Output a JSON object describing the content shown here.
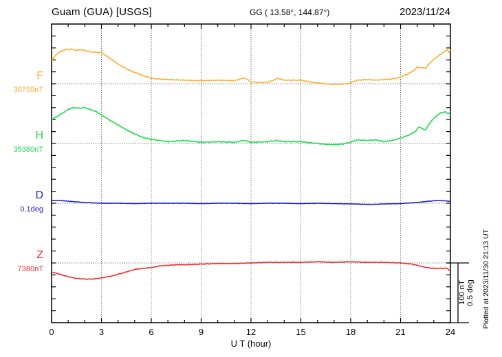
{
  "header": {
    "station": "Guam (GUA)  [USGS]",
    "coords": "GG ( 13.58°, 144.87°)",
    "date": "2023/11/24"
  },
  "x_axis": {
    "label": "U T (hour)",
    "tick_labels": [
      "0",
      "3",
      "6",
      "9",
      "12",
      "15",
      "18",
      "21",
      "24"
    ]
  },
  "scale_bar": {
    "line1": "100 nT",
    "line2": "0.5 deg"
  },
  "footer_note": "Plotted at 2023/11/30 21:13 UT",
  "channels": [
    {
      "id": "F",
      "label": "F",
      "base_label": "36750nT",
      "color": "#FFAE2A"
    },
    {
      "id": "H",
      "label": "H",
      "base_label": "35380nT",
      "color": "#1EDC50"
    },
    {
      "id": "D",
      "label": "D",
      "base_label": "0.1deg",
      "color": "#2424CE"
    },
    {
      "id": "Z",
      "label": "Z",
      "base_label": "7380nT",
      "color": "#F12B2B"
    }
  ],
  "chart_data": {
    "type": "line",
    "title": "Guam (GUA) [USGS] magnetogram",
    "xlabel": "U T (hour)",
    "x_range": [
      0,
      24
    ],
    "x_tick_step": 3,
    "grid": "dotted vertical every 3h, dotted horizontal baseline per channel",
    "legend_position": "left margin channel labels",
    "division_scale": {
      "nT_per_division": 100,
      "deg_per_division": 0.5
    },
    "series": [
      {
        "name": "F",
        "unit": "nT",
        "baseline": 36750,
        "color": "#FFAE2A",
        "points": [
          [
            0,
            36790
          ],
          [
            0.4,
            36802
          ],
          [
            0.8,
            36807
          ],
          [
            1.2,
            36808
          ],
          [
            1.5,
            36806
          ],
          [
            1.8,
            36807
          ],
          [
            2.1,
            36805
          ],
          [
            2.5,
            36803
          ],
          [
            3,
            36802
          ],
          [
            3.5,
            36793
          ],
          [
            4,
            36783
          ],
          [
            4.5,
            36775
          ],
          [
            5,
            36769
          ],
          [
            5.5,
            36764
          ],
          [
            6,
            36759
          ],
          [
            6.5,
            36758
          ],
          [
            7,
            36757
          ],
          [
            8,
            36756
          ],
          [
            9,
            36755
          ],
          [
            10,
            36756
          ],
          [
            11,
            36755
          ],
          [
            11.6,
            36760
          ],
          [
            12,
            36753
          ],
          [
            12.6,
            36752
          ],
          [
            13.1,
            36753
          ],
          [
            13.6,
            36759
          ],
          [
            14,
            36756
          ],
          [
            15,
            36756
          ],
          [
            15.5,
            36753
          ],
          [
            16.2,
            36751
          ],
          [
            16.8,
            36749
          ],
          [
            17.3,
            36749
          ],
          [
            17.8,
            36750
          ],
          [
            18.4,
            36756
          ],
          [
            19,
            36757
          ],
          [
            19.5,
            36756
          ],
          [
            20,
            36757
          ],
          [
            20.5,
            36758
          ],
          [
            21,
            36761
          ],
          [
            21.4,
            36766
          ],
          [
            21.8,
            36772
          ],
          [
            22,
            36778
          ],
          [
            22.2,
            36777
          ],
          [
            22.5,
            36776
          ],
          [
            22.8,
            36786
          ],
          [
            23.2,
            36795
          ],
          [
            23.5,
            36801
          ],
          [
            23.8,
            36807
          ],
          [
            23.9,
            36803
          ],
          [
            24,
            36806
          ]
        ]
      },
      {
        "name": "H",
        "unit": "nT",
        "baseline": 35380,
        "color": "#1EDC50",
        "points": [
          [
            0,
            35420
          ],
          [
            0.5,
            35428
          ],
          [
            1,
            35437
          ],
          [
            1.3,
            35440
          ],
          [
            1.7,
            35439
          ],
          [
            2,
            35440
          ],
          [
            2.3,
            35437
          ],
          [
            2.7,
            35433
          ],
          [
            3,
            35428
          ],
          [
            3.5,
            35419
          ],
          [
            4,
            35411
          ],
          [
            4.5,
            35403
          ],
          [
            5,
            35396
          ],
          [
            5.5,
            35390
          ],
          [
            6,
            35387
          ],
          [
            6.5,
            35385
          ],
          [
            7,
            35383
          ],
          [
            8,
            35385
          ],
          [
            9,
            35382
          ],
          [
            10,
            35383
          ],
          [
            11,
            35382
          ],
          [
            11.6,
            35385
          ],
          [
            12,
            35382
          ],
          [
            13,
            35383
          ],
          [
            13.6,
            35385
          ],
          [
            14,
            35383
          ],
          [
            15,
            35383
          ],
          [
            15.7,
            35381
          ],
          [
            16.3,
            35379
          ],
          [
            17,
            35378
          ],
          [
            17.5,
            35379
          ],
          [
            18,
            35382
          ],
          [
            18.4,
            35386
          ],
          [
            19,
            35385
          ],
          [
            19.5,
            35386
          ],
          [
            20,
            35383
          ],
          [
            20.5,
            35385
          ],
          [
            21,
            35389
          ],
          [
            21.5,
            35394
          ],
          [
            21.9,
            35400
          ],
          [
            22.1,
            35408
          ],
          [
            22.3,
            35405
          ],
          [
            22.5,
            35403
          ],
          [
            22.8,
            35416
          ],
          [
            23.1,
            35425
          ],
          [
            23.4,
            35431
          ],
          [
            23.7,
            35433
          ],
          [
            23.85,
            35430
          ],
          [
            24,
            35433
          ]
        ]
      },
      {
        "name": "D",
        "unit": "deg",
        "baseline": 0.1,
        "color": "#2424CE",
        "points": [
          [
            0,
            0.123
          ],
          [
            0.5,
            0.123
          ],
          [
            1,
            0.117
          ],
          [
            1.5,
            0.111
          ],
          [
            2,
            0.106
          ],
          [
            3,
            0.1
          ],
          [
            4,
            0.1
          ],
          [
            5,
            0.097
          ],
          [
            6,
            0.1
          ],
          [
            7,
            0.1
          ],
          [
            8,
            0.1
          ],
          [
            9,
            0.097
          ],
          [
            10,
            0.1
          ],
          [
            11,
            0.1
          ],
          [
            12,
            0.097
          ],
          [
            13,
            0.1
          ],
          [
            14,
            0.1
          ],
          [
            15,
            0.097
          ],
          [
            16,
            0.1
          ],
          [
            17,
            0.097
          ],
          [
            18,
            0.094
          ],
          [
            18.7,
            0.091
          ],
          [
            19.3,
            0.089
          ],
          [
            20,
            0.094
          ],
          [
            21,
            0.097
          ],
          [
            22,
            0.106
          ],
          [
            22.7,
            0.117
          ],
          [
            23.3,
            0.123
          ],
          [
            24,
            0.117
          ]
        ]
      },
      {
        "name": "Z",
        "unit": "nT",
        "baseline": 7380,
        "color": "#F12B2B",
        "points": [
          [
            0,
            7365
          ],
          [
            0.5,
            7361
          ],
          [
            1,
            7357
          ],
          [
            1.5,
            7354
          ],
          [
            2,
            7353
          ],
          [
            2.4,
            7353
          ],
          [
            2.8,
            7354
          ],
          [
            3.2,
            7356
          ],
          [
            3.6,
            7358
          ],
          [
            4,
            7361
          ],
          [
            4.5,
            7365
          ],
          [
            5,
            7369
          ],
          [
            5.5,
            7371
          ],
          [
            6,
            7372
          ],
          [
            6.5,
            7375
          ],
          [
            7,
            7376
          ],
          [
            7.5,
            7377
          ],
          [
            8,
            7377
          ],
          [
            9,
            7378
          ],
          [
            10,
            7379
          ],
          [
            11,
            7379
          ],
          [
            12,
            7380
          ],
          [
            13,
            7381
          ],
          [
            14,
            7381
          ],
          [
            15,
            7381
          ],
          [
            16,
            7382
          ],
          [
            17,
            7381
          ],
          [
            18,
            7382
          ],
          [
            19,
            7381
          ],
          [
            20,
            7381
          ],
          [
            21,
            7380
          ],
          [
            21.3,
            7379
          ],
          [
            21.7,
            7378
          ],
          [
            22,
            7376
          ],
          [
            22.3,
            7374
          ],
          [
            22.6,
            7372
          ],
          [
            23,
            7371
          ],
          [
            23.3,
            7371
          ],
          [
            23.6,
            7371
          ],
          [
            23.8,
            7371
          ],
          [
            24,
            7366
          ]
        ]
      }
    ]
  }
}
